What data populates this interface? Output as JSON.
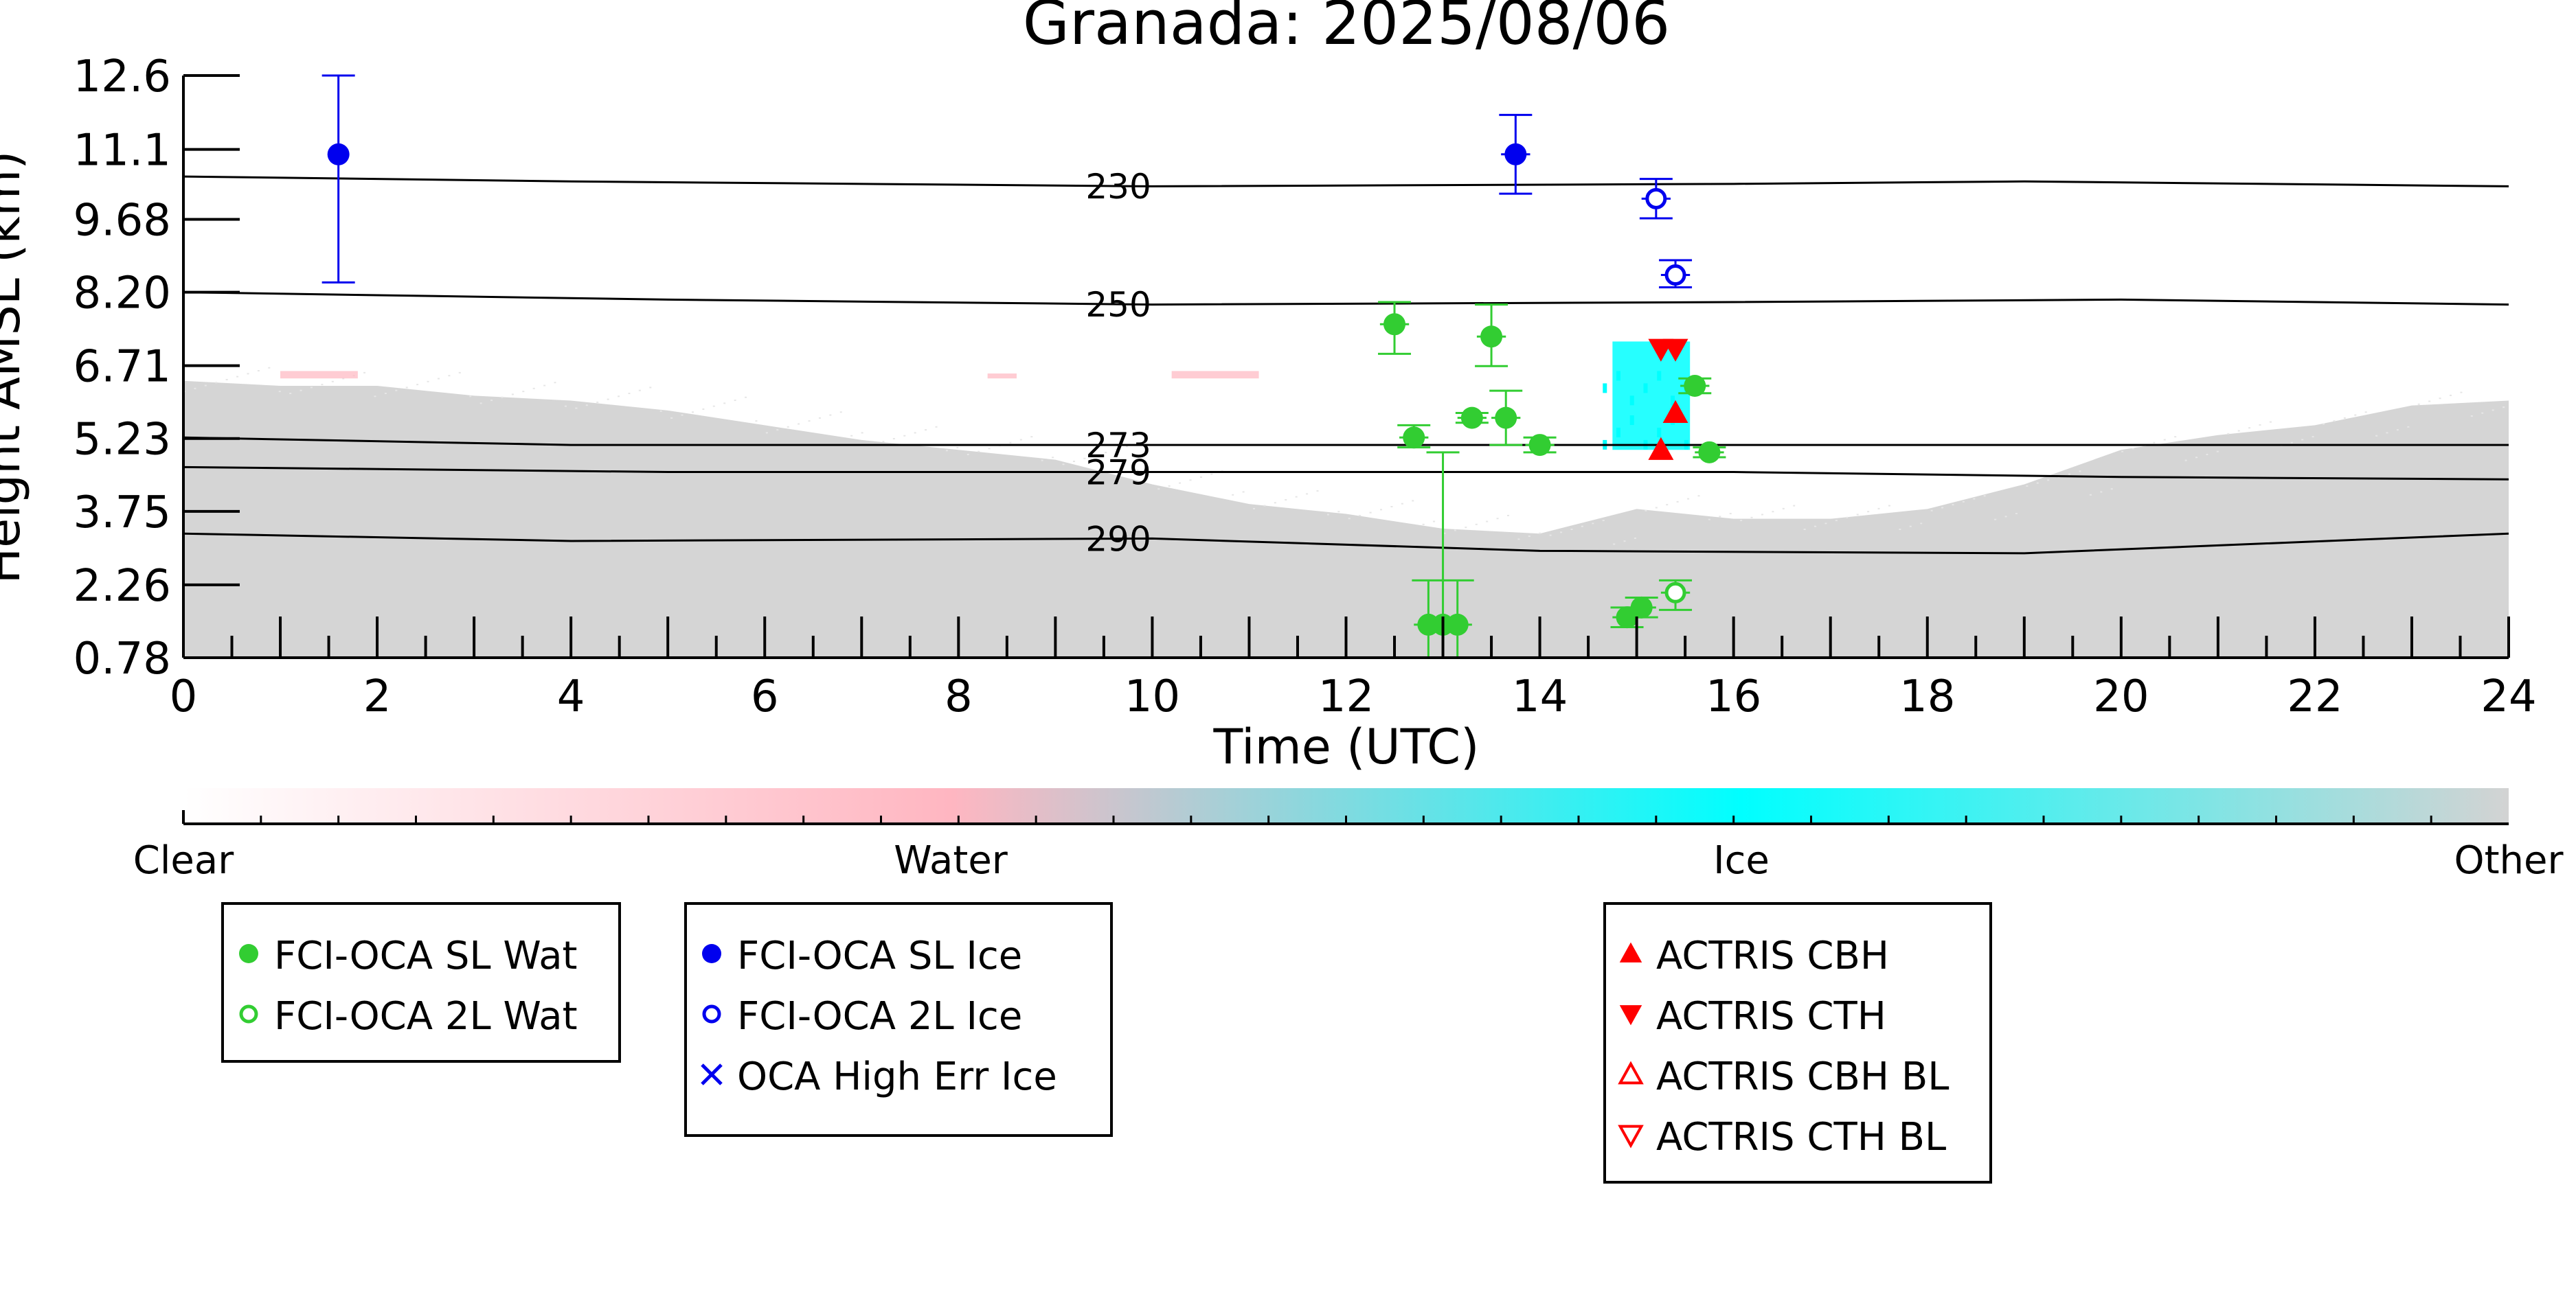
{
  "chart_data": {
    "type": "scatter",
    "title": "Granada: 2025/08/06",
    "xlabel": "Time (UTC)",
    "ylabel": "Height AMSL (km)",
    "xlim": [
      0,
      24
    ],
    "ylim": [
      0.78,
      12.6
    ],
    "x_ticks": [
      0,
      2,
      4,
      6,
      8,
      10,
      12,
      14,
      16,
      18,
      20,
      22,
      24
    ],
    "y_ticks": [
      0.78,
      2.26,
      3.75,
      5.23,
      6.71,
      8.2,
      9.68,
      11.1,
      12.6
    ],
    "y_tick_labels": [
      "0.78",
      "2.26",
      "3.75",
      "5.23",
      "6.71",
      "8.20",
      "9.68",
      "11.1",
      "12.6"
    ],
    "grid": false,
    "background": {
      "description_class": "Other",
      "color": "#d3d3d3",
      "top_profile": [
        [
          0,
          6.4
        ],
        [
          1,
          6.3
        ],
        [
          2,
          6.3
        ],
        [
          3,
          6.1
        ],
        [
          4,
          6.0
        ],
        [
          5,
          5.8
        ],
        [
          6,
          5.5
        ],
        [
          7,
          5.2
        ],
        [
          8,
          5.0
        ],
        [
          9,
          4.8
        ],
        [
          10,
          4.3
        ],
        [
          11,
          3.9
        ],
        [
          12,
          3.7
        ],
        [
          13,
          3.4
        ],
        [
          14,
          3.3
        ],
        [
          15,
          3.8
        ],
        [
          16,
          3.6
        ],
        [
          17,
          3.6
        ],
        [
          18,
          3.8
        ],
        [
          19,
          4.3
        ],
        [
          20,
          5.0
        ],
        [
          21,
          5.3
        ],
        [
          22,
          5.5
        ],
        [
          23,
          5.9
        ],
        [
          24,
          6.0
        ]
      ],
      "ice_patch": {
        "x": [
          14.75,
          15.55
        ],
        "y": [
          5.0,
          7.2
        ],
        "color": "#00ffff"
      },
      "water_specks": [
        {
          "x": [
            1.0,
            1.8
          ],
          "y": [
            6.45,
            6.6
          ]
        },
        {
          "x": [
            8.3,
            8.6
          ],
          "y": [
            6.45,
            6.55
          ]
        },
        {
          "x": [
            10.2,
            11.1
          ],
          "y": [
            6.45,
            6.6
          ]
        }
      ]
    },
    "isotherms": [
      {
        "label": "230",
        "points": [
          [
            0,
            10.55
          ],
          [
            4,
            10.45
          ],
          [
            10,
            10.35
          ],
          [
            16,
            10.4
          ],
          [
            19,
            10.45
          ],
          [
            24,
            10.35
          ]
        ]
      },
      {
        "label": "250",
        "points": [
          [
            0,
            8.2
          ],
          [
            5,
            8.05
          ],
          [
            10,
            7.95
          ],
          [
            16,
            8.0
          ],
          [
            20,
            8.05
          ],
          [
            24,
            7.95
          ]
        ]
      },
      {
        "label": "273",
        "points": [
          [
            0,
            5.25
          ],
          [
            4,
            5.1
          ],
          [
            10,
            5.1
          ],
          [
            16,
            5.1
          ],
          [
            20,
            5.1
          ],
          [
            24,
            5.1
          ]
        ]
      },
      {
        "label": "279",
        "points": [
          [
            0,
            4.65
          ],
          [
            5,
            4.55
          ],
          [
            10,
            4.55
          ],
          [
            14,
            4.55
          ],
          [
            16,
            4.55
          ],
          [
            20,
            4.45
          ],
          [
            24,
            4.4
          ]
        ]
      },
      {
        "label": "290",
        "points": [
          [
            0,
            3.3
          ],
          [
            4,
            3.15
          ],
          [
            10,
            3.2
          ],
          [
            14,
            2.95
          ],
          [
            19,
            2.9
          ],
          [
            24,
            3.3
          ]
        ]
      }
    ],
    "series": [
      {
        "name": "FCI-OCA SL Wat",
        "color": "#32cd32",
        "marker": "circle-filled",
        "points": [
          {
            "x": 12.5,
            "y": 7.55,
            "yerr": [
              6.95,
              8.0
            ],
            "xerr": [
              12.35,
              12.65
            ]
          },
          {
            "x": 12.7,
            "y": 5.25,
            "yerr": [
              5.05,
              5.5
            ],
            "xerr": [
              12.55,
              12.85
            ]
          },
          {
            "x": 12.85,
            "y": 1.45,
            "yerr": [
              0.78,
              2.35
            ],
            "xerr": [
              12.7,
              13.0
            ]
          },
          {
            "x": 13.0,
            "y": 1.45,
            "yerr": [
              0.78,
              4.95
            ],
            "xerr": [
              12.85,
              13.15
            ]
          },
          {
            "x": 13.15,
            "y": 1.45,
            "yerr": [
              0.78,
              2.35
            ],
            "xerr": [
              13.0,
              13.3
            ]
          },
          {
            "x": 13.3,
            "y": 5.65,
            "yerr": [
              5.55,
              5.75
            ],
            "xerr": [
              13.15,
              13.45
            ]
          },
          {
            "x": 13.5,
            "y": 7.3,
            "yerr": [
              6.7,
              7.95
            ],
            "xerr": [
              13.35,
              13.65
            ]
          },
          {
            "x": 13.65,
            "y": 5.65,
            "yerr": [
              5.1,
              6.2
            ],
            "xerr": [
              13.5,
              13.8
            ]
          },
          {
            "x": 14.0,
            "y": 5.1,
            "yerr": [
              4.95,
              5.25
            ],
            "xerr": [
              13.85,
              14.15
            ]
          },
          {
            "x": 14.9,
            "y": 1.6,
            "yerr": [
              1.4,
              1.8
            ],
            "xerr": [
              14.75,
              15.05
            ]
          },
          {
            "x": 15.05,
            "y": 1.8,
            "yerr": [
              1.6,
              2.0
            ],
            "xerr": [
              14.9,
              15.2
            ]
          },
          {
            "x": 15.6,
            "y": 6.3,
            "yerr": [
              6.15,
              6.45
            ],
            "xerr": [
              15.45,
              15.75
            ]
          },
          {
            "x": 15.75,
            "y": 4.95,
            "yerr": [
              4.85,
              5.05
            ],
            "xerr": [
              15.6,
              15.9
            ]
          }
        ]
      },
      {
        "name": "FCI-OCA 2L Wat",
        "color": "#32cd32",
        "marker": "circle-open",
        "points": [
          {
            "x": 15.4,
            "y": 2.1,
            "yerr": [
              1.75,
              2.35
            ],
            "xerr": [
              15.25,
              15.55
            ]
          }
        ]
      },
      {
        "name": "FCI-OCA SL Ice",
        "color": "#0000ee",
        "marker": "circle-filled",
        "points": [
          {
            "x": 1.6,
            "y": 11.0,
            "yerr": [
              8.4,
              12.6
            ]
          },
          {
            "x": 13.75,
            "y": 11.0,
            "yerr": [
              10.2,
              11.8
            ],
            "xerr": [
              13.6,
              13.9
            ]
          }
        ]
      },
      {
        "name": "FCI-OCA 2L Ice",
        "color": "#0000ee",
        "marker": "circle-open",
        "points": [
          {
            "x": 15.2,
            "y": 10.1,
            "yerr": [
              9.7,
              10.5
            ],
            "xerr": [
              15.05,
              15.35
            ]
          },
          {
            "x": 15.4,
            "y": 8.55,
            "yerr": [
              8.3,
              8.85
            ],
            "xerr": [
              15.25,
              15.55
            ]
          }
        ]
      },
      {
        "name": "OCA High Err Ice",
        "color": "#0000ee",
        "marker": "x",
        "points": []
      },
      {
        "name": "ACTRIS CBH",
        "color": "#ff0000",
        "marker": "triangle-up-filled",
        "points": [
          {
            "x": 15.25,
            "y": 5.0
          },
          {
            "x": 15.4,
            "y": 5.75
          }
        ]
      },
      {
        "name": "ACTRIS CTH",
        "color": "#ff0000",
        "marker": "triangle-down-filled",
        "points": [
          {
            "x": 15.25,
            "y": 7.05
          },
          {
            "x": 15.4,
            "y": 7.05
          }
        ]
      },
      {
        "name": "ACTRIS CBH BL",
        "color": "#ff0000",
        "marker": "triangle-up-open",
        "points": []
      },
      {
        "name": "ACTRIS CTH BL",
        "color": "#ff0000",
        "marker": "triangle-down-open",
        "points": []
      }
    ],
    "colorbar": {
      "labels": [
        {
          "text": "Clear",
          "pos": 0.0
        },
        {
          "text": "Water",
          "pos": 0.33
        },
        {
          "text": "Ice",
          "pos": 0.67
        },
        {
          "text": "Other",
          "pos": 1.0
        }
      ],
      "stops": [
        {
          "pos": 0.0,
          "color": "#ffffff"
        },
        {
          "pos": 0.33,
          "color": "#ffb6c1"
        },
        {
          "pos": 0.67,
          "color": "#00ffff"
        },
        {
          "pos": 1.0,
          "color": "#d3d3d3"
        }
      ]
    },
    "legends": [
      {
        "entries": [
          "FCI-OCA SL Wat",
          "FCI-OCA 2L Wat"
        ]
      },
      {
        "entries": [
          "FCI-OCA SL Ice",
          "FCI-OCA 2L Ice",
          "OCA High Err Ice"
        ]
      },
      {
        "entries": [
          "ACTRIS CBH",
          "ACTRIS CTH",
          "ACTRIS CBH BL",
          "ACTRIS CTH BL"
        ]
      }
    ]
  }
}
